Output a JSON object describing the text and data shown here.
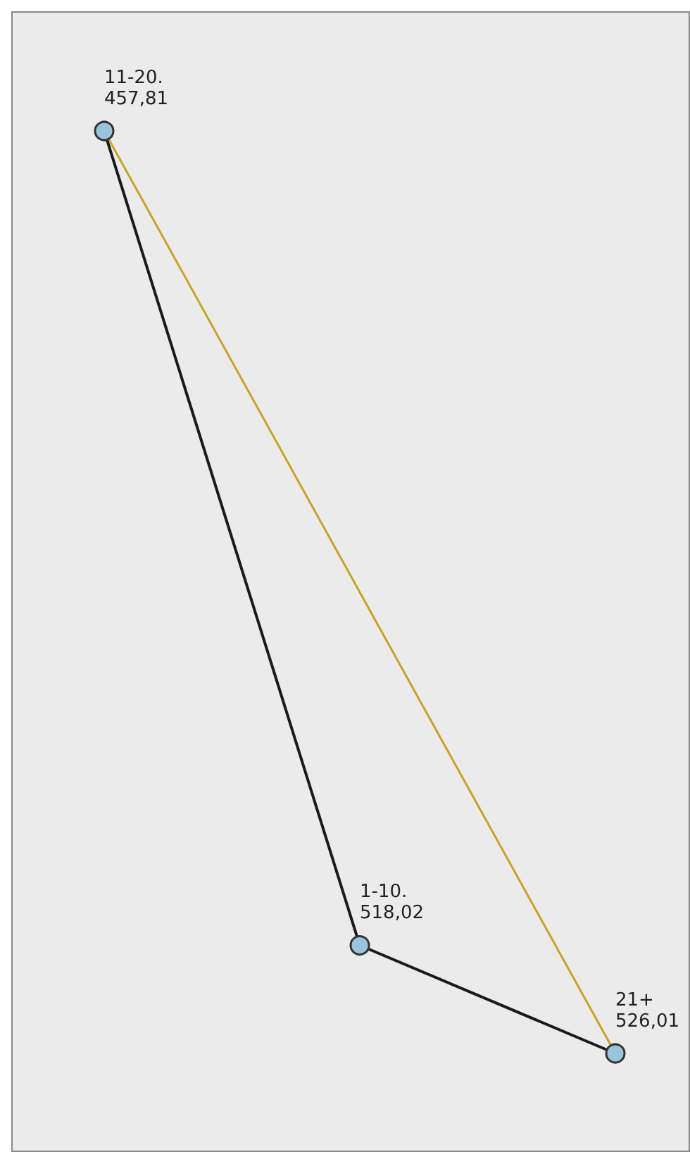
{
  "chart_data": {
    "type": "other",
    "categories": [
      "11-20.",
      "1-10.",
      "21+"
    ],
    "series": [
      {
        "color": "#1a1a1a",
        "values": [
          457.81,
          518.02,
          526.01
        ],
        "value_labels": [
          "457,81",
          "518,02",
          "526,01"
        ]
      },
      {
        "color": "#c9a227",
        "values": [
          null,
          null,
          null
        ]
      }
    ]
  }
}
